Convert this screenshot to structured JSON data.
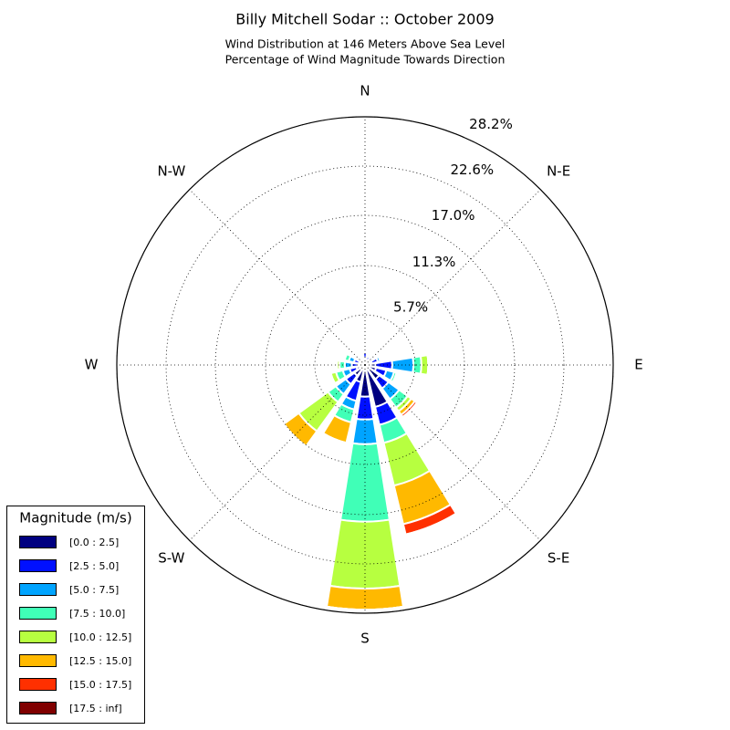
{
  "chart_data": {
    "type": "windrose",
    "title": "Billy Mitchell Sodar :: October 2009",
    "subtitle": [
      "Wind Distribution at 146 Meters Above Sea Level",
      "Percentage of Wind Magnitude Towards Direction"
    ],
    "directions": [
      "N",
      null,
      "N-E",
      null,
      "E",
      null,
      "S-E",
      null,
      "S",
      null,
      "S-W",
      null,
      "W",
      null,
      "N-W",
      null
    ],
    "legend_title": "Magnitude (m/s)",
    "series": [
      {
        "name": "[0.0 : 2.5]",
        "color": "#000080",
        "values": [
          0.8,
          0.6,
          0.5,
          0.8,
          1.2,
          1.3,
          2.0,
          4.9,
          3.6,
          2.0,
          1.5,
          1.0,
          0.8,
          0.7,
          0.5,
          0.4
        ]
      },
      {
        "name": "[2.5 : 5.0]",
        "color": "#0010ff",
        "values": [
          0.6,
          0.4,
          0.3,
          0.7,
          1.9,
          1.2,
          1.3,
          2.1,
          2.6,
          2.2,
          1.2,
          0.8,
          0.7,
          0.6,
          0.3,
          0.2
        ]
      },
      {
        "name": "[5.0 : 7.5]",
        "color": "#00a4ff",
        "values": [
          0,
          0,
          0.2,
          0.3,
          2.4,
          0.9,
          1.5,
          0,
          2.8,
          1.0,
          1.4,
          0.8,
          0.8,
          0.6,
          0,
          0
        ]
      },
      {
        "name": "[7.5 : 10.0]",
        "color": "#40ffb7",
        "values": [
          0,
          0,
          0,
          0,
          0.9,
          0.3,
          1.2,
          2.1,
          8.8,
          1.5,
          1.1,
          0.8,
          0.6,
          0.5,
          0,
          0
        ]
      },
      {
        "name": "[10.0 : 12.5]",
        "color": "#b7ff40",
        "values": [
          0,
          0,
          0,
          0,
          0.8,
          0,
          0.5,
          5.0,
          7.6,
          0,
          4.1,
          0.6,
          0.3,
          0,
          0,
          0
        ]
      },
      {
        "name": "[12.5 : 15.0]",
        "color": "#ffb900",
        "values": [
          0,
          0,
          0,
          0,
          0,
          0,
          0.5,
          4.5,
          2.4,
          2.4,
          2.1,
          0,
          0,
          0,
          0,
          0
        ]
      },
      {
        "name": "[15.0 : 17.5]",
        "color": "#ff3000",
        "values": [
          0,
          0,
          0,
          0,
          0,
          0,
          0.3,
          1.2,
          0,
          0,
          0,
          0,
          0,
          0,
          0,
          0
        ]
      },
      {
        "name": "[17.5 : inf]",
        "color": "#800000",
        "values": [
          0,
          0,
          0,
          0,
          0,
          0,
          0,
          0,
          0,
          0,
          0,
          0,
          0,
          0,
          0,
          0
        ]
      }
    ],
    "rlim": [
      0,
      28.2
    ],
    "rticks": [
      {
        "value": 5.7,
        "label": "5.7%"
      },
      {
        "value": 11.3,
        "label": "11.3%"
      },
      {
        "value": 17.0,
        "label": "17.0%"
      },
      {
        "value": 22.6,
        "label": "22.6%"
      },
      {
        "value": 28.2,
        "label": "28.2%"
      }
    ],
    "grid": true
  }
}
